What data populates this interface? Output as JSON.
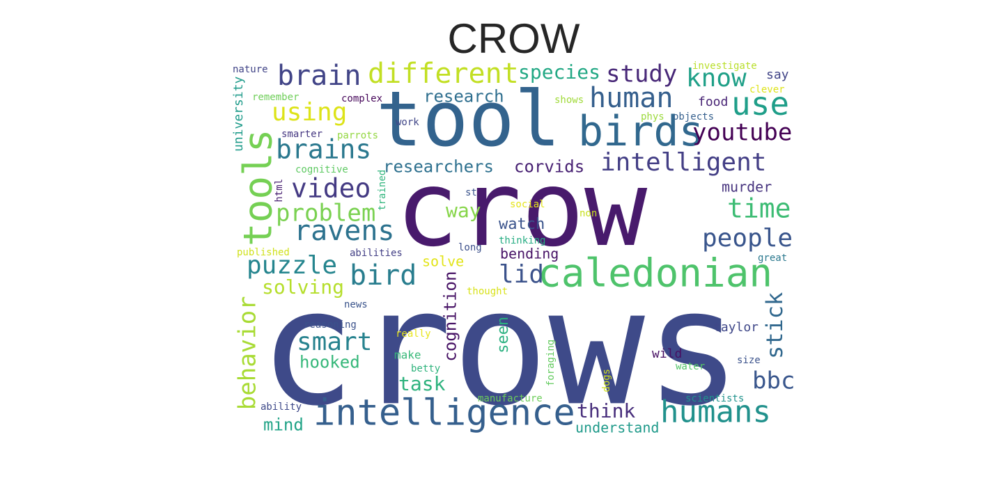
{
  "title": "CROW",
  "words": [
    {
      "text": "crows",
      "color": "#3e4a89"
    },
    {
      "text": "crow",
      "color": "#481a6c"
    },
    {
      "text": "tool",
      "color": "#33638d"
    },
    {
      "text": "caledonian",
      "color": "#4ec36b"
    },
    {
      "text": "intelligence",
      "color": "#355f8d"
    },
    {
      "text": "birds",
      "color": "#31688e"
    },
    {
      "text": "different",
      "color": "#c2df23"
    },
    {
      "text": "brain",
      "color": "#414487"
    },
    {
      "text": "tools",
      "color": "#75d054"
    },
    {
      "text": "ravens",
      "color": "#2c728e"
    },
    {
      "text": "humans",
      "color": "#21918c"
    },
    {
      "text": "human",
      "color": "#355f8d"
    },
    {
      "text": "use",
      "color": "#1f9e89"
    },
    {
      "text": "intelligent",
      "color": "#433e85"
    },
    {
      "text": "youtube",
      "color": "#440154"
    },
    {
      "text": "brains",
      "color": "#2a788e"
    },
    {
      "text": "study",
      "color": "#482878"
    },
    {
      "text": "know",
      "color": "#1fa088"
    },
    {
      "text": "species",
      "color": "#22a884"
    },
    {
      "text": "using",
      "color": "#dde318"
    },
    {
      "text": "video",
      "color": "#443a83"
    },
    {
      "text": "problem",
      "color": "#7ad151"
    },
    {
      "text": "puzzle",
      "color": "#25858e"
    },
    {
      "text": "bird",
      "color": "#287d8e"
    },
    {
      "text": "behavior",
      "color": "#a8db34"
    },
    {
      "text": "smart",
      "color": "#26828e"
    },
    {
      "text": "people",
      "color": "#39558c"
    },
    {
      "text": "time",
      "color": "#3dbc74"
    },
    {
      "text": "stick",
      "color": "#31688e"
    },
    {
      "text": "bbc",
      "color": "#39568c"
    },
    {
      "text": "think",
      "color": "#472d7b"
    },
    {
      "text": "cognition",
      "color": "#471365"
    },
    {
      "text": "lid",
      "color": "#3b528b"
    },
    {
      "text": "way",
      "color": "#86d549"
    },
    {
      "text": "researchers",
      "color": "#2d708e"
    },
    {
      "text": "corvids",
      "color": "#482173"
    },
    {
      "text": "solving",
      "color": "#b5de2b"
    },
    {
      "text": "research",
      "color": "#2e6e8e"
    },
    {
      "text": "task",
      "color": "#2db27d"
    },
    {
      "text": "hooked",
      "color": "#35b779"
    },
    {
      "text": "mind",
      "color": "#20a386"
    },
    {
      "text": "seen",
      "color": "#2ab07f"
    },
    {
      "text": "watch",
      "color": "#3a538b"
    },
    {
      "text": "solve",
      "color": "#e2e418"
    },
    {
      "text": "murder",
      "color": "#46337e"
    },
    {
      "text": "understand",
      "color": "#1f9a8a"
    },
    {
      "text": "university",
      "color": "#1e9b8a"
    },
    {
      "text": "bending",
      "color": "#481467"
    },
    {
      "text": "taylor",
      "color": "#3f4788"
    },
    {
      "text": "wild",
      "color": "#471063"
    },
    {
      "text": "food",
      "color": "#482475"
    },
    {
      "text": "say",
      "color": "#414487"
    },
    {
      "text": "complex",
      "color": "#450559"
    },
    {
      "text": "remember",
      "color": "#6ece58"
    },
    {
      "text": "shows",
      "color": "#a0da39"
    },
    {
      "text": "phys",
      "color": "#9bd93c"
    },
    {
      "text": "objects",
      "color": "#355f8d"
    },
    {
      "text": "clever",
      "color": "#dde318"
    },
    {
      "text": "investigate",
      "color": "#b8de29"
    },
    {
      "text": "nature",
      "color": "#414487"
    },
    {
      "text": "work",
      "color": "#404688"
    },
    {
      "text": "smarter",
      "color": "#453781"
    },
    {
      "text": "parrots",
      "color": "#93d741"
    },
    {
      "text": "cognitive",
      "color": "#5ec962"
    },
    {
      "text": "html",
      "color": "#482071"
    },
    {
      "text": "trained",
      "color": "#2fb47c"
    },
    {
      "text": "st",
      "color": "#3a548c"
    },
    {
      "text": "social",
      "color": "#e5e419"
    },
    {
      "text": "non",
      "color": "#c8e020"
    },
    {
      "text": "thinking",
      "color": "#25ac82"
    },
    {
      "text": "long",
      "color": "#3c4f8a"
    },
    {
      "text": "published",
      "color": "#d0e11c"
    },
    {
      "text": "abilities",
      "color": "#423f85"
    },
    {
      "text": "great",
      "color": "#2a788e"
    },
    {
      "text": "thought",
      "color": "#d8e219"
    },
    {
      "text": "news",
      "color": "#3a538b"
    },
    {
      "text": "reasoning",
      "color": "#3b528b"
    },
    {
      "text": "really",
      "color": "#e7e419"
    },
    {
      "text": "make",
      "color": "#37b878"
    },
    {
      "text": "betty",
      "color": "#2eb37c"
    },
    {
      "text": "foraging",
      "color": "#63cb5f"
    },
    {
      "text": "dogs",
      "color": "#d2e21b"
    },
    {
      "text": "water",
      "color": "#54c568"
    },
    {
      "text": "size",
      "color": "#3b528b"
    },
    {
      "text": "manufacture",
      "color": "#6ccd5a"
    },
    {
      "text": "scientists",
      "color": "#20928c"
    },
    {
      "text": "ability",
      "color": "#3e4989"
    }
  ]
}
